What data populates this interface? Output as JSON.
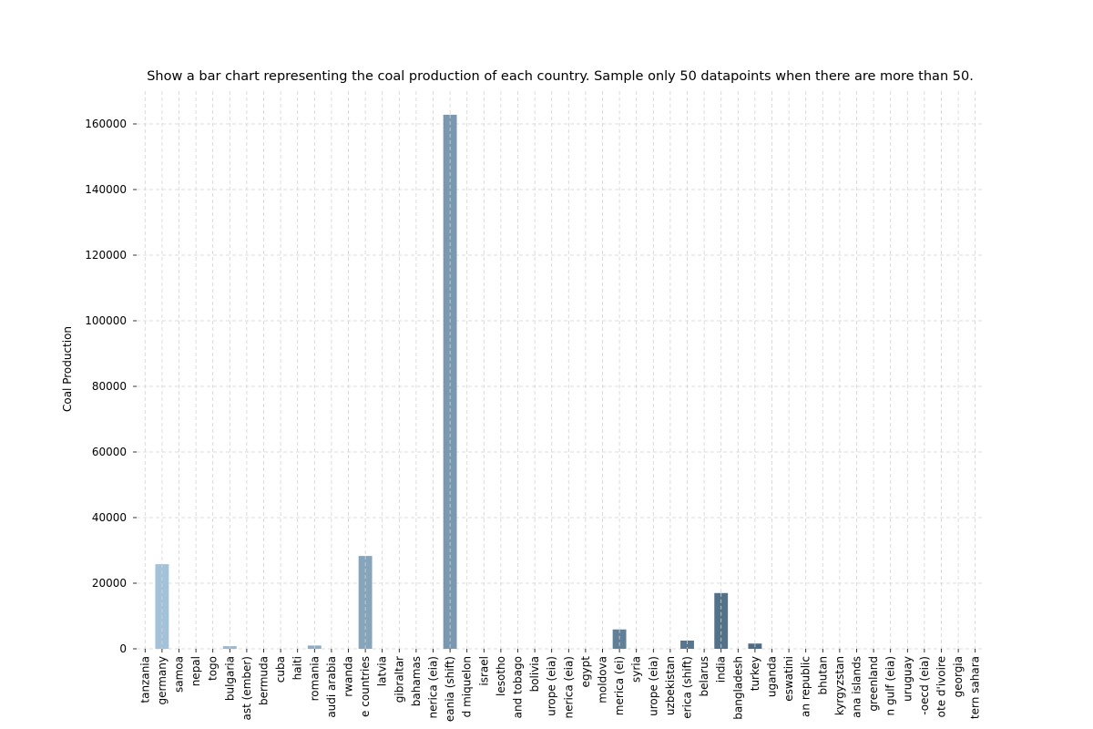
{
  "chart_data": {
    "type": "bar",
    "title": "Show a bar chart representing the coal production of each country. Sample only 50 datapoints when there are more than 50.",
    "xlabel": "",
    "ylabel": "Coal Production",
    "ylim": [
      0,
      170000
    ],
    "yticks": [
      0,
      20000,
      40000,
      60000,
      80000,
      100000,
      120000,
      140000,
      160000
    ],
    "grid": true,
    "categories": [
      "tanzania",
      "germany",
      "samoa",
      "nepal",
      "togo",
      "bulgaria",
      "ast (ember)",
      "bermuda",
      "cuba",
      "haiti",
      "romania",
      "audi arabia",
      "rwanda",
      "e countries",
      "latvia",
      "gibraltar",
      "bahamas",
      "nerica (eia)",
      "eania (shift)",
      "d miquelon",
      "israel",
      "lesotho",
      "and tobago",
      "bolivia",
      "urope (eia)",
      "nerica (eia)",
      "egypt",
      "moldova",
      "merica (ei)",
      "syria",
      "urope (eia)",
      "uzbekistan",
      "erica (shift)",
      "belarus",
      "india",
      "bangladesh",
      "turkey",
      "uganda",
      "eswatini",
      "an republic",
      "bhutan",
      "kyrgyzstan",
      "ana islands",
      "greenland",
      "n gulf (eia)",
      "uruguay",
      "-oecd (eia)",
      "ote d'ivoire",
      "georgia",
      "tern sahara"
    ],
    "values": [
      0,
      25800,
      0,
      0,
      0,
      800,
      0,
      0,
      0,
      0,
      1000,
      0,
      0,
      28300,
      0,
      0,
      0,
      0,
      162800,
      0,
      0,
      0,
      0,
      0,
      0,
      0,
      0,
      0,
      5900,
      0,
      0,
      0,
      2500,
      0,
      17000,
      0,
      1600,
      0,
      0,
      0,
      0,
      0,
      0,
      0,
      0,
      0,
      0,
      0,
      0,
      0
    ],
    "color_start": "#a6c4d9",
    "color_end": "#2e4c66"
  }
}
